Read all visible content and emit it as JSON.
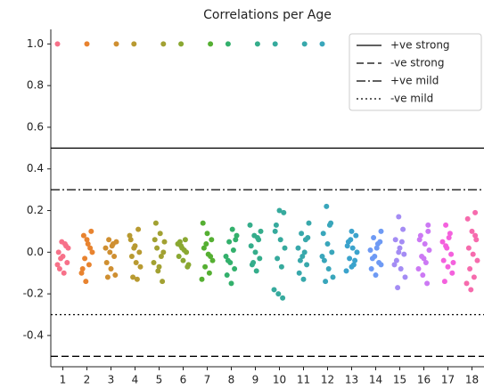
{
  "chart_data": {
    "type": "strip",
    "title": "Correlations per Age",
    "categories": [
      "1",
      "2",
      "3",
      "4",
      "5",
      "6",
      "7",
      "8",
      "9",
      "10",
      "11",
      "12",
      "13",
      "14",
      "15",
      "16",
      "17",
      "18"
    ],
    "colors": [
      "#f77189",
      "#e8832f",
      "#cf8f31",
      "#b89a31",
      "#a2a132",
      "#8aa832",
      "#55af32",
      "#33b06c",
      "#35ad8b",
      "#36aa9d",
      "#38a8ab",
      "#39a6bb",
      "#3ba3cc",
      "#6e9af4",
      "#a48cf4",
      "#cc79f4",
      "#f461dd",
      "#f66bad"
    ],
    "points": [
      [
        1.0,
        0.05,
        0.03,
        0.0,
        -0.02,
        -0.05,
        -0.08,
        -0.1,
        0.02,
        -0.03,
        0.04,
        -0.06
      ],
      [
        1.0,
        0.1,
        0.08,
        0.04,
        0.0,
        -0.03,
        -0.06,
        -0.1,
        -0.14,
        0.02,
        -0.08,
        0.06
      ],
      [
        1.0,
        0.06,
        0.04,
        0.02,
        0.0,
        -0.02,
        -0.05,
        -0.08,
        -0.11,
        -0.12,
        0.03,
        0.05
      ],
      [
        1.0,
        0.11,
        0.06,
        0.03,
        0.0,
        -0.02,
        -0.05,
        -0.07,
        -0.12,
        -0.13,
        0.08,
        0.02
      ],
      [
        1.0,
        0.14,
        0.09,
        0.05,
        0.02,
        -0.02,
        -0.05,
        -0.09,
        -0.14,
        0.06,
        -0.07,
        0.0
      ],
      [
        1.0,
        0.06,
        0.04,
        0.02,
        0.0,
        -0.02,
        -0.04,
        -0.07,
        0.05,
        0.01,
        -0.06,
        0.03
      ],
      [
        1.0,
        0.14,
        0.09,
        0.06,
        0.02,
        -0.01,
        -0.04,
        -0.07,
        -0.1,
        -0.13,
        0.04,
        -0.02
      ],
      [
        1.0,
        0.11,
        0.08,
        0.05,
        0.01,
        -0.02,
        -0.05,
        -0.08,
        -0.11,
        -0.15,
        0.06,
        -0.04
      ],
      [
        1.0,
        0.13,
        0.08,
        0.06,
        0.03,
        0.0,
        -0.03,
        -0.06,
        -0.09,
        0.1,
        -0.05,
        0.07
      ],
      [
        1.0,
        0.2,
        0.19,
        0.13,
        0.06,
        0.02,
        -0.03,
        -0.07,
        -0.18,
        -0.2,
        -0.22,
        0.1
      ],
      [
        1.0,
        0.14,
        0.09,
        0.06,
        0.02,
        -0.02,
        -0.06,
        -0.1,
        -0.13,
        0.07,
        -0.04,
        0.0
      ],
      [
        1.0,
        0.22,
        0.14,
        0.09,
        0.04,
        0.0,
        -0.04,
        -0.08,
        -0.12,
        -0.14,
        0.13,
        -0.02
      ],
      [
        0.1,
        0.08,
        0.05,
        0.02,
        0.0,
        -0.03,
        -0.06,
        -0.09,
        0.06,
        -0.04,
        0.03,
        -0.07
      ],
      [
        0.1,
        0.07,
        0.04,
        0.01,
        -0.02,
        -0.05,
        -0.08,
        -0.11,
        0.05,
        -0.03,
        0.02,
        -0.06
      ],
      [
        0.17,
        0.11,
        0.06,
        0.02,
        -0.01,
        -0.04,
        -0.08,
        -0.12,
        -0.17,
        0.05,
        -0.06,
        0.0
      ],
      [
        0.13,
        0.08,
        0.04,
        0.01,
        -0.02,
        -0.05,
        -0.08,
        -0.11,
        -0.15,
        0.06,
        -0.03,
        0.1
      ],
      [
        0.13,
        0.09,
        0.05,
        0.02,
        -0.01,
        -0.04,
        -0.07,
        -0.1,
        -0.14,
        0.07,
        -0.05,
        0.03
      ],
      [
        0.19,
        0.16,
        0.1,
        0.06,
        0.02,
        -0.01,
        -0.04,
        -0.08,
        -0.12,
        -0.15,
        -0.18,
        0.08
      ]
    ],
    "reference_lines": [
      {
        "name": "+ve strong",
        "value": 0.5,
        "style": "solid"
      },
      {
        "name": "-ve strong",
        "value": -0.5,
        "style": "dashed"
      },
      {
        "name": "+ve mild",
        "value": 0.3,
        "style": "dashdot"
      },
      {
        "name": "-ve mild",
        "value": -0.3,
        "style": "dotted"
      }
    ],
    "ylim": [
      -0.55,
      1.07
    ],
    "yticks": [
      -0.4,
      -0.2,
      {
        "value": 0,
        "label": "0.0"
      },
      0.2,
      0.4,
      0.6,
      0.8,
      {
        "value": 1,
        "label": "1.0"
      }
    ],
    "legend": "upper right"
  }
}
